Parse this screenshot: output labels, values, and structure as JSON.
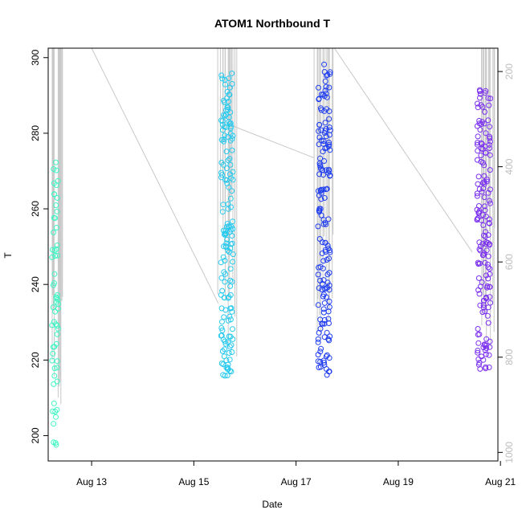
{
  "chart_data": {
    "type": "scatter",
    "title": "ATOM1 Northbound T",
    "xlabel": "Date",
    "ylabel": "T",
    "x_axis": {
      "unit": "days since Aug 12 00:00",
      "range": [
        0.15,
        8.95
      ],
      "ticks": [
        {
          "value": 1,
          "label": "Aug 13"
        },
        {
          "value": 3,
          "label": "Aug 15"
        },
        {
          "value": 5,
          "label": "Aug 17"
        },
        {
          "value": 7,
          "label": "Aug 19"
        },
        {
          "value": 9,
          "label": "Aug 21"
        }
      ]
    },
    "y_axis": {
      "range": [
        193.3,
        302.5
      ],
      "ticks": [
        200,
        220,
        240,
        260,
        280,
        300
      ]
    },
    "y2_axis": {
      "range": [
        1018,
        151
      ],
      "ticks": [
        200,
        400,
        600,
        800,
        1000
      ],
      "color": "#bdbdbd"
    },
    "grid": false,
    "legend": "none",
    "colors": {
      "segment_1": "#3df5c3",
      "segment_2": "#27c9ee",
      "segment_3": "#1f3df0",
      "segment_4": "#7a2ff0",
      "profile_line": "#c8c8c8"
    },
    "segments": [
      {
        "x_range": [
          0.2,
          0.45
        ],
        "y_min": 196.5,
        "y_max": 272.5,
        "x_center": 0.28
      },
      {
        "x_range": [
          3.45,
          3.85
        ],
        "y_min": 215.5,
        "y_max": 296.0,
        "x_center": 3.58
      },
      {
        "x_range": [
          5.35,
          5.75
        ],
        "y_min": 216.0,
        "y_max": 299.0,
        "x_center": 5.55
      },
      {
        "x_range": [
          8.45,
          8.9
        ],
        "y_min": 217.5,
        "y_max": 293.5,
        "x_center": 8.62
      }
    ],
    "connectors": [
      {
        "x": [
          0.35,
          1.0,
          3.48
        ],
        "y": [
          302.5,
          302.5,
          235.0
        ]
      },
      {
        "x": [
          3.75,
          5.35
        ],
        "y": [
          282.0,
          273.5
        ]
      },
      {
        "x": [
          5.75,
          8.45
        ],
        "y": [
          302.5,
          248.5
        ]
      }
    ]
  }
}
